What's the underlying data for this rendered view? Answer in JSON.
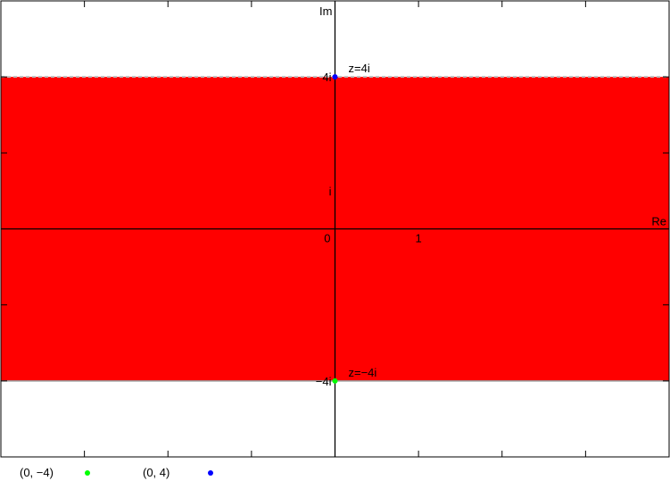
{
  "chart_data": {
    "type": "area",
    "title": "",
    "xlabel": "Re",
    "ylabel": "Im",
    "xlim": [
      -4,
      4
    ],
    "ylim": [
      -6,
      6
    ],
    "grid": false,
    "region": {
      "description_label": "",
      "y_min": -4,
      "y_max": 4,
      "color": "#ff0000",
      "upper_boundary_style": "dashed",
      "lower_boundary_style": "solid"
    },
    "x_tick_labels": [
      {
        "value": 0,
        "label": "0"
      },
      {
        "value": 1,
        "label": "1"
      }
    ],
    "y_tick_labels": [
      {
        "value": 4,
        "label": "4i"
      },
      {
        "value": 1,
        "label": "i"
      },
      {
        "value": -4,
        "label": "−4i"
      }
    ],
    "points": [
      {
        "x": 0,
        "y": 4,
        "label": "z=4i",
        "color": "#0000ff",
        "legend": "(0, 4)"
      },
      {
        "x": 0,
        "y": -4,
        "label": "z=−4i",
        "color": "#00ff00",
        "legend": "(0, −4)"
      }
    ]
  }
}
